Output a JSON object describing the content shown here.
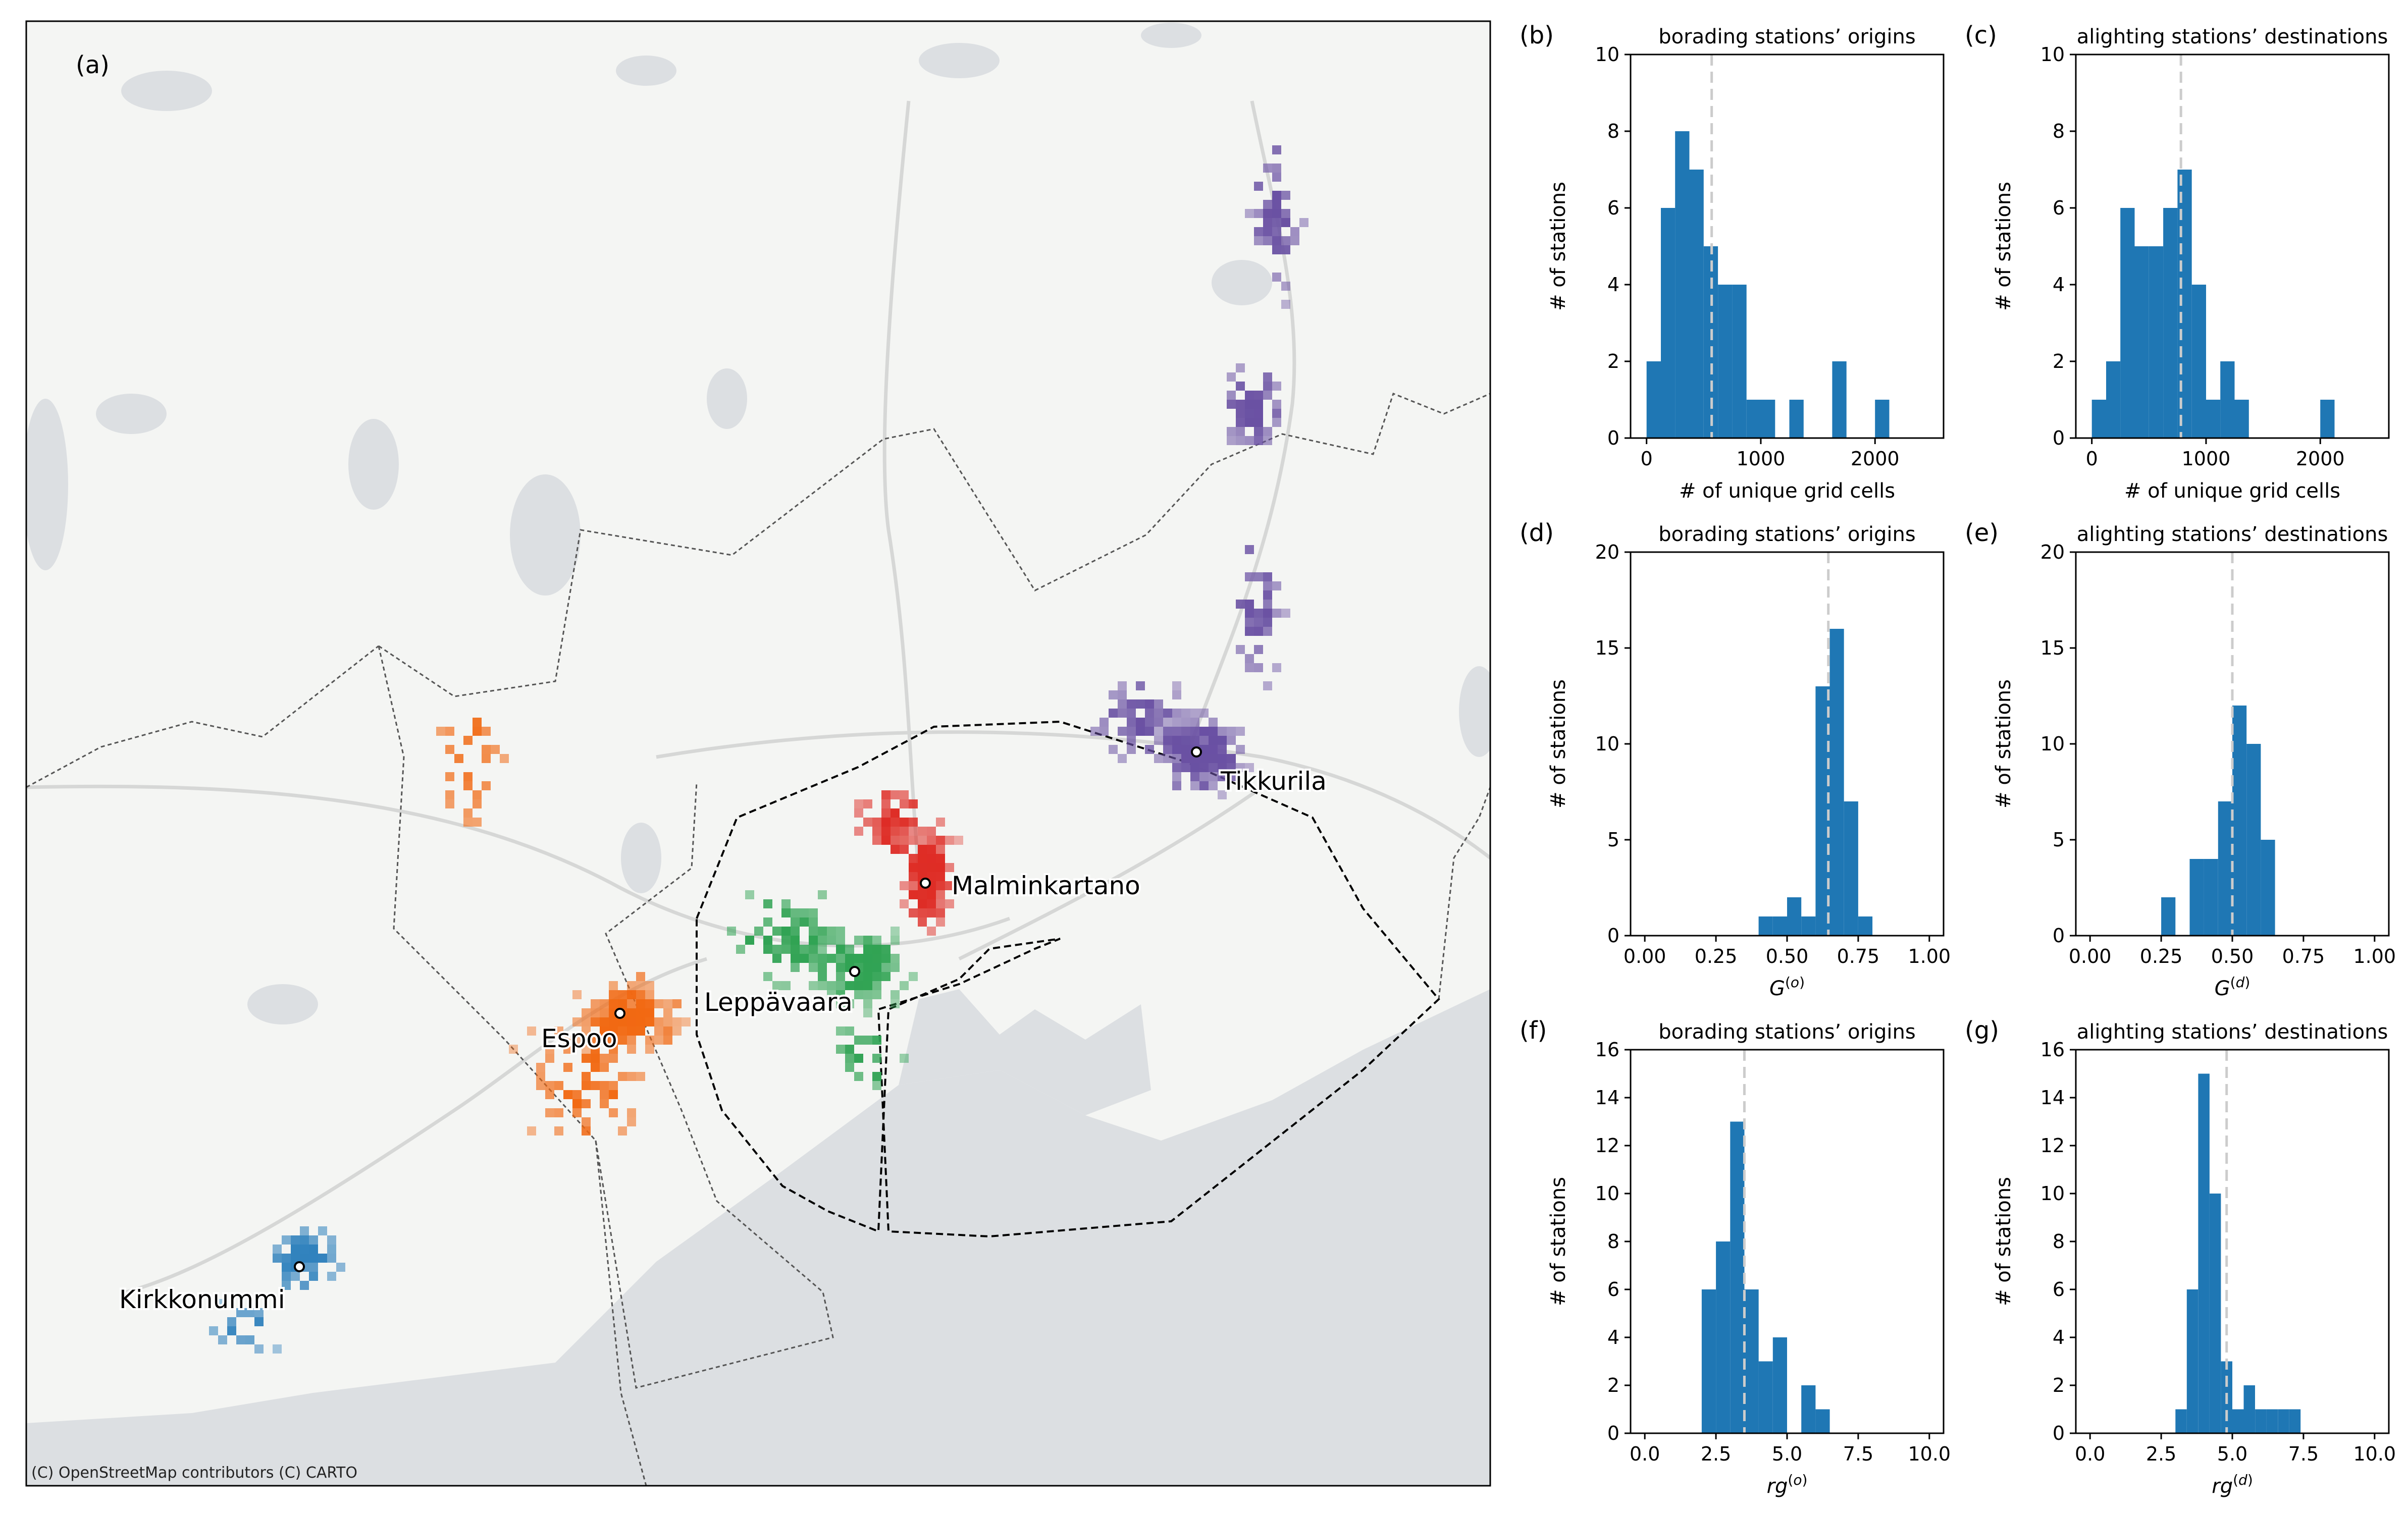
{
  "map": {
    "panel_label": "(a)",
    "attribution": "(C) OpenStreetMap contributors (C) CARTO",
    "stations": [
      {
        "name": "Tikkurila",
        "color": "#6a51a3"
      },
      {
        "name": "Malminkartano",
        "color": "#de2d26"
      },
      {
        "name": "Leppävaara",
        "color": "#31a354"
      },
      {
        "name": "Espoo",
        "color": "#f16913"
      },
      {
        "name": "Kirkkonummi",
        "color": "#3182bd"
      }
    ]
  },
  "chart_data": [
    {
      "panel": "(b)",
      "type": "bar",
      "title": "borading stations’ origins",
      "xlabel": "# of unique grid cells",
      "ylabel": "# of stations",
      "xlim": [
        -140,
        2600
      ],
      "ylim": [
        0,
        10
      ],
      "xticks": [
        "0",
        "1000",
        "2000"
      ],
      "xtick_values": [
        0,
        1000,
        2000
      ],
      "yticks": [
        "0",
        "2",
        "4",
        "6",
        "8",
        "10"
      ],
      "ytick_values": [
        0,
        2,
        4,
        6,
        8,
        10
      ],
      "bin_start": 0,
      "bin_width": 125,
      "values": [
        2,
        6,
        8,
        7,
        5,
        4,
        4,
        1,
        1,
        0,
        1,
        0,
        0,
        2,
        0,
        0,
        1
      ],
      "mean": 570,
      "bar_color": "#1f77b4",
      "mean_color": "#cccccc"
    },
    {
      "panel": "(c)",
      "type": "bar",
      "title": "alighting stations’ destinations",
      "xlabel": "# of unique grid cells",
      "ylabel": "# of stations",
      "xlim": [
        -140,
        2600
      ],
      "ylim": [
        0,
        10
      ],
      "xticks": [
        "0",
        "1000",
        "2000"
      ],
      "xtick_values": [
        0,
        1000,
        2000
      ],
      "yticks": [
        "0",
        "2",
        "4",
        "6",
        "8",
        "10"
      ],
      "ytick_values": [
        0,
        2,
        4,
        6,
        8,
        10
      ],
      "bin_start": 0,
      "bin_width": 125,
      "values": [
        1,
        2,
        6,
        5,
        5,
        6,
        7,
        4,
        1,
        2,
        1,
        0,
        0,
        0,
        0,
        0,
        1
      ],
      "mean": 780,
      "bar_color": "#1f77b4",
      "mean_color": "#cccccc"
    },
    {
      "panel": "(d)",
      "type": "bar",
      "title": "borading stations’ origins",
      "xlabel": "G(o)",
      "ylabel": "# of stations",
      "xlim": [
        -0.05,
        1.05
      ],
      "ylim": [
        0,
        20
      ],
      "xticks": [
        "0.00",
        "0.25",
        "0.50",
        "0.75",
        "1.00"
      ],
      "xtick_values": [
        0,
        0.25,
        0.5,
        0.75,
        1.0
      ],
      "yticks": [
        "0",
        "5",
        "10",
        "15",
        "20"
      ],
      "ytick_values": [
        0,
        5,
        10,
        15,
        20
      ],
      "bin_start": 0.4,
      "bin_width": 0.05,
      "values": [
        1,
        1,
        2,
        1,
        13,
        16,
        7,
        1
      ],
      "mean": 0.645,
      "bar_color": "#1f77b4",
      "mean_color": "#cccccc"
    },
    {
      "panel": "(e)",
      "type": "bar",
      "title": "alighting stations’ destinations",
      "xlabel": "G(d)",
      "ylabel": "# of stations",
      "xlim": [
        -0.05,
        1.05
      ],
      "ylim": [
        0,
        20
      ],
      "xticks": [
        "0.00",
        "0.25",
        "0.50",
        "0.75",
        "1.00"
      ],
      "xtick_values": [
        0,
        0.25,
        0.5,
        0.75,
        1.0
      ],
      "yticks": [
        "0",
        "5",
        "10",
        "15",
        "20"
      ],
      "ytick_values": [
        0,
        5,
        10,
        15,
        20
      ],
      "bin_start": 0.25,
      "bin_width": 0.05,
      "values": [
        2,
        0,
        4,
        4,
        7,
        12,
        10,
        5
      ],
      "mean": 0.5,
      "bar_color": "#1f77b4",
      "mean_color": "#cccccc"
    },
    {
      "panel": "(f)",
      "type": "bar",
      "title": "borading stations’ origins",
      "xlabel": "rg(o)",
      "ylabel": "# of stations",
      "xlim": [
        -0.5,
        10.5
      ],
      "ylim": [
        0,
        16
      ],
      "xticks": [
        "0.0",
        "2.5",
        "5.0",
        "7.5",
        "10.0"
      ],
      "xtick_values": [
        0,
        2.5,
        5,
        7.5,
        10
      ],
      "yticks": [
        "0",
        "2",
        "4",
        "6",
        "8",
        "10",
        "12",
        "14",
        "16"
      ],
      "ytick_values": [
        0,
        2,
        4,
        6,
        8,
        10,
        12,
        14,
        16
      ],
      "bin_start": 2.0,
      "bin_width": 0.5,
      "values": [
        6,
        8,
        13,
        6,
        3,
        4,
        0,
        2,
        1
      ],
      "mean": 3.5,
      "bar_color": "#1f77b4",
      "mean_color": "#cccccc"
    },
    {
      "panel": "(g)",
      "type": "bar",
      "title": "alighting stations’ destinations",
      "xlabel": "rg(d)",
      "ylabel": "# of stations",
      "xlim": [
        -0.5,
        10.5
      ],
      "ylim": [
        0,
        16
      ],
      "xticks": [
        "0.0",
        "2.5",
        "5.0",
        "7.5",
        "10.0"
      ],
      "xtick_values": [
        0,
        2.5,
        5,
        7.5,
        10
      ],
      "yticks": [
        "0",
        "2",
        "4",
        "6",
        "8",
        "10",
        "12",
        "14",
        "16"
      ],
      "ytick_values": [
        0,
        2,
        4,
        6,
        8,
        10,
        12,
        14,
        16
      ],
      "bin_start": 3.0,
      "bin_width": 0.4,
      "values": [
        1,
        6,
        15,
        10,
        3,
        1,
        2,
        1,
        1,
        1,
        1
      ],
      "mean": 4.8,
      "bar_color": "#1f77b4",
      "mean_color": "#cccccc"
    }
  ]
}
